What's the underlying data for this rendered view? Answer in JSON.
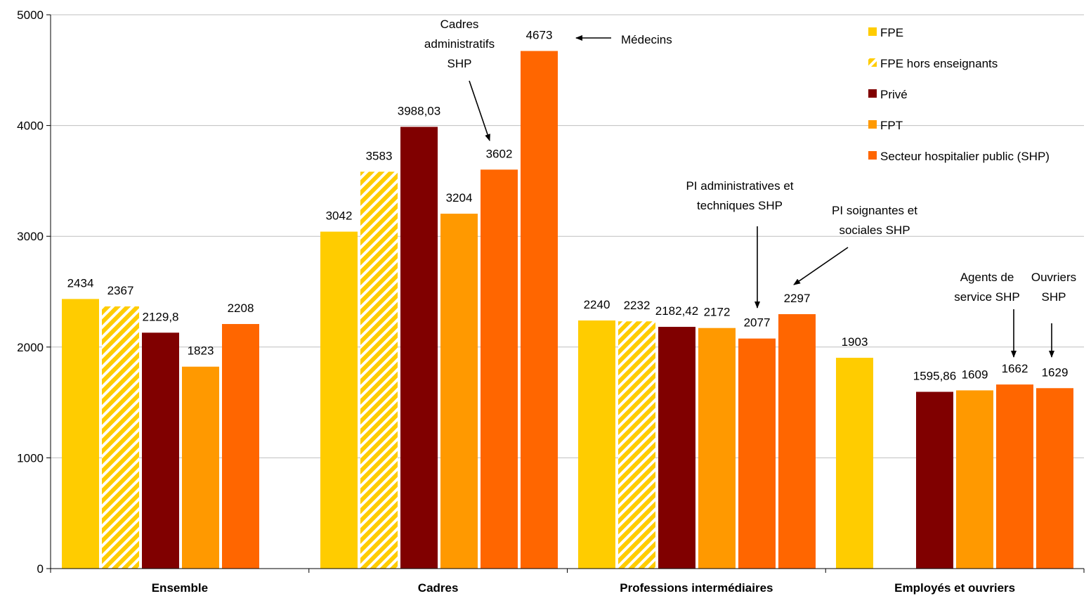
{
  "chart_data": {
    "type": "bar",
    "ylim": [
      0,
      5000
    ],
    "yticks": [
      0,
      1000,
      2000,
      3000,
      4000,
      5000
    ],
    "grid": true,
    "legend_position": "top-right",
    "categories": [
      "Ensemble",
      "Cadres",
      "Professions intermédiaires",
      "Employés et ouvriers"
    ],
    "bars": [
      [
        {
          "series": "FPE",
          "value": 2434,
          "label": "2434"
        },
        {
          "series": "FPE hors enseignants",
          "value": 2367,
          "label": "2367"
        },
        {
          "series": "Privé",
          "value": 2129.8,
          "label": "2129,8"
        },
        {
          "series": "FPT",
          "value": 1823,
          "label": "1823"
        },
        {
          "series": "Secteur hospitalier public (SHP)",
          "value": 2208,
          "label": "2208"
        }
      ],
      [
        {
          "series": "FPE",
          "value": 3042,
          "label": "3042"
        },
        {
          "series": "FPE hors enseignants",
          "value": 3583,
          "label": "3583"
        },
        {
          "series": "Privé",
          "value": 3988.03,
          "label": "3988,03"
        },
        {
          "series": "FPT",
          "value": 3204,
          "label": "3204"
        },
        {
          "series": "Secteur hospitalier public (SHP)",
          "value": 3602,
          "label": "3602"
        },
        {
          "series": "Secteur hospitalier public (SHP)",
          "value": 4673,
          "label": "4673"
        }
      ],
      [
        {
          "series": "FPE",
          "value": 2240,
          "label": "2240"
        },
        {
          "series": "FPE hors enseignants",
          "value": 2232,
          "label": "2232"
        },
        {
          "series": "Privé",
          "value": 2182.42,
          "label": "2182,42"
        },
        {
          "series": "FPT",
          "value": 2172,
          "label": "2172"
        },
        {
          "series": "Secteur hospitalier public (SHP)",
          "value": 2077,
          "label": "2077"
        },
        {
          "series": "Secteur hospitalier public (SHP)",
          "value": 2297,
          "label": "2297"
        }
      ],
      [
        {
          "series": "FPE",
          "value": 1903,
          "label": "1903"
        },
        {
          "series": "Privé",
          "value": 1595.86,
          "label": "1595,86"
        },
        {
          "series": "FPT",
          "value": 1609,
          "label": "1609"
        },
        {
          "series": "Secteur hospitalier public (SHP)",
          "value": 1662,
          "label": "1662"
        },
        {
          "series": "Secteur hospitalier public (SHP)",
          "value": 1629,
          "label": "1629"
        }
      ]
    ],
    "legend": [
      {
        "name": "FPE",
        "color": "#FFCC00",
        "pattern": "solid"
      },
      {
        "name": "FPE hors enseignants",
        "color": "#FFCC00",
        "pattern": "hatched"
      },
      {
        "name": "Privé",
        "color": "#800000",
        "pattern": "solid"
      },
      {
        "name": "FPT",
        "color": "#FF9900",
        "pattern": "solid"
      },
      {
        "name": "Secteur hospitalier public (SHP)",
        "color": "#FF6600",
        "pattern": "solid"
      }
    ],
    "annotations": [
      {
        "lines": [
          "Cadres",
          "administratifs",
          "SHP"
        ],
        "points_to": "3602"
      },
      {
        "lines": [
          "Médecins"
        ],
        "points_to": "4673"
      },
      {
        "lines": [
          "PI administratives  et",
          "techniques SHP"
        ],
        "points_to": "2077"
      },
      {
        "lines": [
          "PI soignantes et",
          "sociales SHP"
        ],
        "points_to": "2297"
      },
      {
        "lines": [
          "Agents de",
          "service SHP"
        ],
        "points_to": "1662"
      },
      {
        "lines": [
          "Ouvriers",
          "SHP"
        ],
        "points_to": "1629"
      }
    ]
  }
}
